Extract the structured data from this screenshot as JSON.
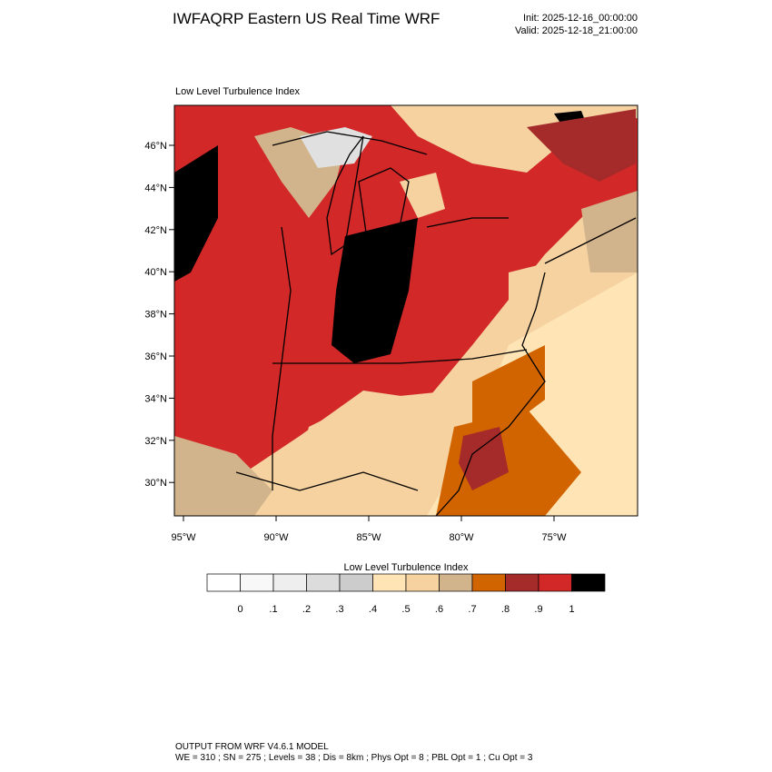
{
  "header": {
    "title": "IWFAQRP Eastern US Real Time WRF",
    "init": "Init: 2025-12-16_00:00:00",
    "valid": "Valid: 2025-12-18_21:00:00"
  },
  "map": {
    "subtitle": "Low Level Turbulence Index",
    "lat_labels": [
      "46°N",
      "44°N",
      "42°N",
      "40°N",
      "38°N",
      "36°N",
      "34°N",
      "32°N",
      "30°N"
    ],
    "lon_labels": [
      "95°W",
      "90°W",
      "85°W",
      "80°W",
      "75°W"
    ]
  },
  "colorbar": {
    "title": "Low Level Turbulence Index",
    "colors": [
      "#ffffff",
      "#f8f8f8",
      "#eeeeee",
      "#dcdcdc",
      "#cccccc",
      "#ffe4b5",
      "#f5d2a0",
      "#d2b48c",
      "#d26400",
      "#a52a2a",
      "#d22828",
      "#000000"
    ],
    "labels": [
      "0",
      ".1",
      ".2",
      ".3",
      ".4",
      ".5",
      ".6",
      ".7",
      ".8",
      ".9",
      "1"
    ]
  },
  "footer": {
    "line1": "OUTPUT FROM WRF V4.6.1 MODEL",
    "line2": "WE = 310 ; SN = 275 ; Levels = 38 ; Dis = 8km ; Phys Opt = 8 ; PBL Opt = 1 ; Cu Opt = 3"
  }
}
